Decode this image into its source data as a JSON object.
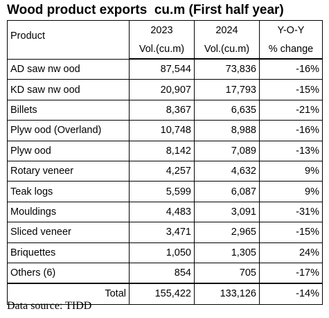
{
  "title": "Wood product exports  cu.m (First half year)",
  "header": {
    "product": "Product",
    "col_2023": "2023",
    "col_2024": "2024",
    "col_yoy": "Y-O-Y",
    "unit_2023": "Vol.(cu.m)",
    "unit_2024": "Vol.(cu.m)",
    "unit_yoy": "% change"
  },
  "rows": [
    {
      "product": "AD saw nw ood",
      "v2023": "87,544",
      "v2024": "73,836",
      "yoy": "-16%"
    },
    {
      "product": "KD saw nw ood",
      "v2023": "20,907",
      "v2024": "17,793",
      "yoy": "-15%"
    },
    {
      "product": "Billets",
      "v2023": "8,367",
      "v2024": "6,635",
      "yoy": "-21%"
    },
    {
      "product": "Plyw ood (Overland)",
      "v2023": "10,748",
      "v2024": "8,988",
      "yoy": "-16%"
    },
    {
      "product": "Plyw ood",
      "v2023": "8,142",
      "v2024": "7,089",
      "yoy": "-13%"
    },
    {
      "product": "Rotary veneer",
      "v2023": "4,257",
      "v2024": "4,632",
      "yoy": "9%"
    },
    {
      "product": "Teak logs",
      "v2023": "5,599",
      "v2024": "6,087",
      "yoy": "9%"
    },
    {
      "product": "Mouldings",
      "v2023": "4,483",
      "v2024": "3,091",
      "yoy": "-31%"
    },
    {
      "product": "Sliced veneer",
      "v2023": "3,471",
      "v2024": "2,965",
      "yoy": "-15%"
    },
    {
      "product": "Briquettes",
      "v2023": "1,050",
      "v2024": "1,305",
      "yoy": "24%"
    },
    {
      "product": "Others (6)",
      "v2023": "854",
      "v2024": "705",
      "yoy": "-17%"
    }
  ],
  "total": {
    "label": "Total",
    "v2023": "155,422",
    "v2024": "133,126",
    "yoy": "-14%"
  },
  "footer": "Data source: TIDD"
}
